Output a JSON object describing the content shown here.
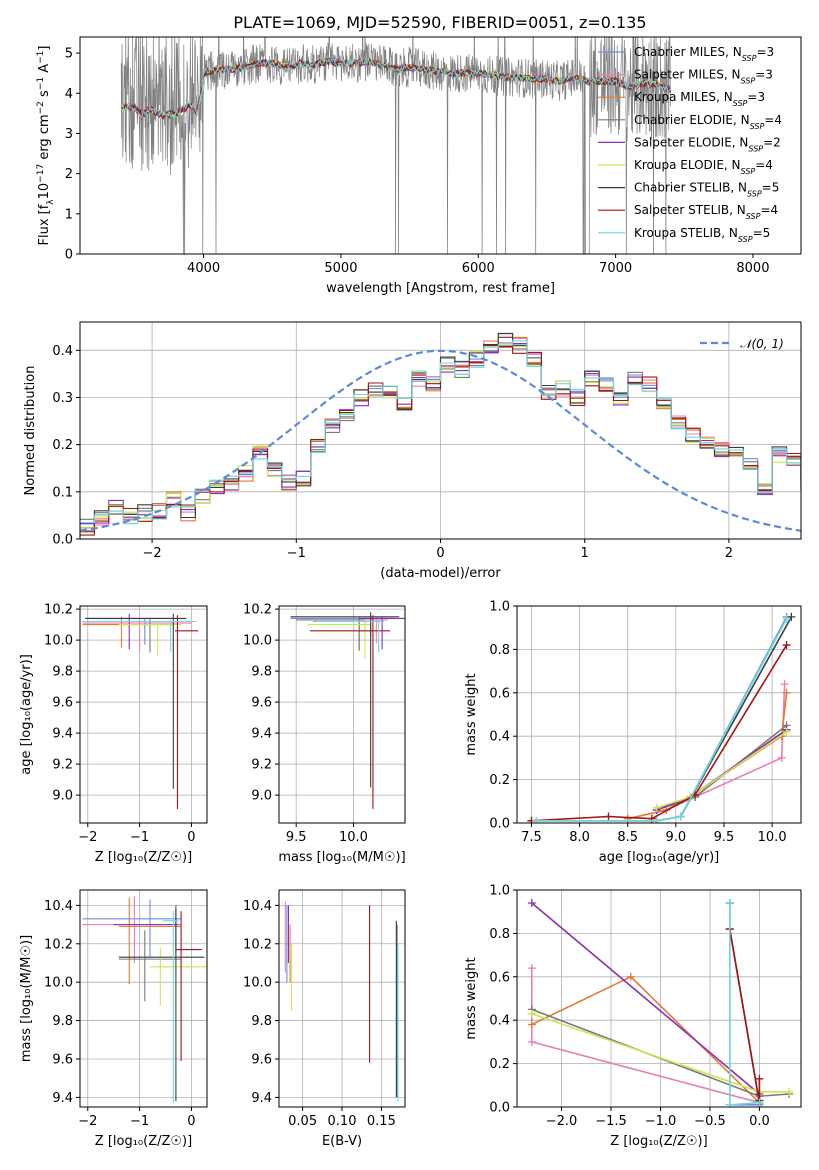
{
  "figure": {
    "title": "PLATE=1069, MJD=52590, FIBERID=0051, z=0.135"
  },
  "models": [
    {
      "name": "Chabrier MILES",
      "nssp": "3",
      "color": "#6f8fdc"
    },
    {
      "name": "Salpeter MILES",
      "nssp": "3",
      "color": "#e77fb5"
    },
    {
      "name": "Kroupa MILES",
      "nssp": "3",
      "color": "#e67a35"
    },
    {
      "name": "Chabrier ELODIE",
      "nssp": "4",
      "color": "#7a7a7a"
    },
    {
      "name": "Salpeter ELODIE",
      "nssp": "2",
      "color": "#8b2fb3"
    },
    {
      "name": "Kroupa ELODIE",
      "nssp": "4",
      "color": "#c9e84f"
    },
    {
      "name": "Chabrier STELIB",
      "nssp": "5",
      "color": "#3c3c3c"
    },
    {
      "name": "Salpeter STELIB",
      "nssp": "4",
      "color": "#a31515"
    },
    {
      "name": "Kroupa STELIB",
      "nssp": "5",
      "color": "#6fd8dc"
    }
  ],
  "chart_data": [
    {
      "id": "spectrum",
      "type": "line",
      "xlabel": "wavelength [Angstrom, rest frame]",
      "ylabel_parts": [
        "Flux [f",
        "λ",
        "10",
        "−17",
        " erg cm",
        "−2",
        " s",
        "−1",
        " A",
        "−1",
        "]"
      ],
      "xlim": [
        3100,
        8350
      ],
      "ylim": [
        0,
        5.4
      ],
      "xticks": [
        4000,
        5000,
        6000,
        7000,
        8000
      ],
      "yticks": [
        0,
        1,
        2,
        3,
        4,
        5
      ],
      "grid": false,
      "legend_position": "right",
      "model_curve": {
        "x": [
          3400,
          3500,
          3550,
          3600,
          3700,
          3800,
          3900,
          3950,
          4000,
          4100,
          4200,
          4300,
          4400,
          4500,
          4600,
          4700,
          4800,
          4900,
          5000,
          5100,
          5200,
          5300,
          5400,
          5500,
          5600,
          5700,
          5800,
          5900,
          6000,
          6100,
          6200,
          6300,
          6400,
          6500,
          6600,
          6700,
          6800,
          6900,
          7000,
          7100,
          7200,
          7300,
          7400
        ],
        "y": [
          3.9,
          3.9,
          3.7,
          3.85,
          3.7,
          3.75,
          3.95,
          3.8,
          4.5,
          4.6,
          4.6,
          4.65,
          4.75,
          4.75,
          4.65,
          4.75,
          4.7,
          4.8,
          4.75,
          4.75,
          4.8,
          4.7,
          4.6,
          4.65,
          4.6,
          4.55,
          4.5,
          4.5,
          4.5,
          4.45,
          4.4,
          4.4,
          4.35,
          4.35,
          4.3,
          4.4,
          4.3,
          4.3,
          4.3,
          4.15,
          4.25,
          4.2,
          4.1
        ]
      }
    },
    {
      "id": "residuals",
      "type": "step",
      "xlabel": "(data-model)/error",
      "ylabel": "Normed distribution",
      "xlim": [
        -2.5,
        2.5
      ],
      "ylim": [
        0,
        0.46
      ],
      "xticks": [
        -2,
        -1,
        0,
        1,
        2
      ],
      "yticks": [
        0.0,
        0.1,
        0.2,
        0.3,
        0.4
      ],
      "grid": true,
      "legend": "𝒩(0, 1)",
      "legend_position": "top-right",
      "bin_edges_start": -2.5,
      "bin_width": 0.1,
      "histogram": [
        0.025,
        0.045,
        0.07,
        0.05,
        0.055,
        0.06,
        0.085,
        0.055,
        0.09,
        0.11,
        0.12,
        0.14,
        0.18,
        0.15,
        0.12,
        0.13,
        0.2,
        0.24,
        0.26,
        0.3,
        0.32,
        0.31,
        0.29,
        0.34,
        0.33,
        0.37,
        0.36,
        0.38,
        0.41,
        0.42,
        0.41,
        0.38,
        0.31,
        0.32,
        0.3,
        0.34,
        0.33,
        0.3,
        0.34,
        0.33,
        0.29,
        0.25,
        0.22,
        0.2,
        0.19,
        0.18,
        0.16,
        0.11,
        0.18,
        0.17,
        0.12,
        0.1,
        0.08,
        0.065,
        0.07,
        0.05,
        0.045,
        0.04,
        0.035,
        0.035,
        0.03
      ]
    },
    {
      "id": "age-vs-Z",
      "type": "errorbar",
      "xlabel": "Z [log₁₀(Z/Z☉)]",
      "ylabel": "age  [log₁₀(age/yr)]",
      "xlim": [
        -2.15,
        0.3
      ],
      "ylim": [
        8.82,
        10.22
      ],
      "xticks": [
        -2,
        -1,
        0
      ],
      "yticks": [
        9.0,
        9.2,
        9.4,
        9.6,
        9.8,
        10.0,
        10.2
      ],
      "grid": true,
      "points": [
        {
          "x": -0.9,
          "y": 10.12,
          "xerr": [
            1.2,
            0.9
          ],
          "yerr": [
            0.15,
            0.02
          ]
        },
        {
          "x": -1.0,
          "y": 10.11,
          "xerr": [
            1.1,
            1.0
          ],
          "yerr": [
            0.18,
            0.02
          ]
        },
        {
          "x": -1.35,
          "y": 10.1,
          "xerr": [
            0.75,
            1.0
          ],
          "yerr": [
            0.15,
            0.05
          ]
        },
        {
          "x": -0.8,
          "y": 10.12,
          "xerr": [
            1.1,
            0.6
          ],
          "yerr": [
            0.2,
            0.02
          ]
        },
        {
          "x": -1.2,
          "y": 10.14,
          "xerr": [
            0.85,
            0.95
          ],
          "yerr": [
            0.2,
            0.03
          ]
        },
        {
          "x": -0.65,
          "y": 10.1,
          "xerr": [
            0.75,
            0.45
          ],
          "yerr": [
            0.2,
            0.02
          ]
        },
        {
          "x": -0.35,
          "y": 10.14,
          "xerr": [
            1.7,
            0.25
          ],
          "yerr": [
            1.1,
            0.03
          ]
        },
        {
          "x": -0.27,
          "y": 10.06,
          "xerr": [
            0.05,
            0.4
          ],
          "yerr": [
            1.15,
            0.1
          ]
        },
        {
          "x": -0.4,
          "y": 10.12,
          "xerr": [
            1.7,
            0.5
          ],
          "yerr": [
            0.2,
            0.01
          ]
        }
      ]
    },
    {
      "id": "age-vs-mass",
      "type": "errorbar",
      "xlabel": "mass [log₁₀(M/M☉)]",
      "ylabel": "",
      "xlim": [
        9.35,
        10.45
      ],
      "ylim": [
        8.82,
        10.22
      ],
      "xticks": [
        9.5,
        10.0
      ],
      "yticks": [
        9.0,
        9.2,
        9.4,
        9.6,
        9.8,
        10.0,
        10.2
      ],
      "grid": true,
      "points": [
        {
          "x": 10.15,
          "y": 10.14,
          "xerr": [
            0.7,
            0.2
          ],
          "yerr": [
            0.12,
            0.02
          ]
        },
        {
          "x": 10.2,
          "y": 10.13,
          "xerr": [
            0.6,
            0.1
          ],
          "yerr": [
            0.15,
            0.02
          ]
        },
        {
          "x": 10.05,
          "y": 10.12,
          "xerr": [
            0.4,
            0.15
          ],
          "yerr": [
            0.18,
            0.02
          ]
        },
        {
          "x": 10.05,
          "y": 10.13,
          "xerr": [
            0.55,
            0.05
          ],
          "yerr": [
            0.2,
            0.02
          ]
        },
        {
          "x": 10.25,
          "y": 10.14,
          "xerr": [
            0.2,
            0.2
          ],
          "yerr": [
            0.2,
            0.01
          ]
        },
        {
          "x": 10.1,
          "y": 10.1,
          "xerr": [
            0.5,
            0.05
          ],
          "yerr": [
            0.22,
            0.02
          ]
        },
        {
          "x": 10.15,
          "y": 10.15,
          "xerr": [
            0.7,
            0.25
          ],
          "yerr": [
            1.1,
            0.03
          ]
        },
        {
          "x": 10.17,
          "y": 10.06,
          "xerr": [
            0.55,
            0.15
          ],
          "yerr": [
            1.15,
            0.1
          ]
        },
        {
          "x": 10.22,
          "y": 10.12,
          "xerr": [
            0.55,
            0.05
          ],
          "yerr": [
            0.2,
            0.01
          ]
        }
      ]
    },
    {
      "id": "weight-vs-age",
      "type": "line",
      "xlabel": "age  [log₁₀(age/yr)]",
      "ylabel": "mass weight",
      "xlim": [
        7.35,
        10.3
      ],
      "ylim": [
        0,
        1.0
      ],
      "xticks": [
        7.5,
        8.0,
        8.5,
        9.0,
        9.5,
        10.0
      ],
      "yticks": [
        0.0,
        0.2,
        0.4,
        0.6,
        0.8,
        1.0
      ],
      "grid": true,
      "series": [
        {
          "x": [
            8.5,
            8.8,
            9.05,
            10.15
          ],
          "y": [
            0.01,
            0.01,
            0.03,
            0.95
          ]
        },
        {
          "x": [
            8.5,
            8.9,
            9.2,
            10.1,
            10.13
          ],
          "y": [
            0.02,
            0.06,
            0.12,
            0.3,
            0.64
          ]
        },
        {
          "x": [
            8.5,
            8.9,
            9.15,
            10.1,
            10.15
          ],
          "y": [
            0.02,
            0.06,
            0.12,
            0.4,
            0.6
          ]
        },
        {
          "x": [
            8.8,
            9.2,
            10.15
          ],
          "y": [
            0.06,
            0.12,
            0.45
          ]
        },
        {
          "x": [
            8.8,
            9.15,
            10.15
          ],
          "y": [
            0.06,
            0.12,
            0.43
          ]
        },
        {
          "x": [
            8.8,
            9.15,
            10.15
          ],
          "y": [
            0.07,
            0.12,
            0.42
          ]
        },
        {
          "x": [
            7.5,
            8.8,
            9.05,
            10.2
          ],
          "y": [
            0.01,
            0.01,
            0.03,
            0.95
          ]
        },
        {
          "x": [
            7.5,
            8.3,
            8.75,
            9.2,
            10.15
          ],
          "y": [
            0.01,
            0.03,
            0.02,
            0.13,
            0.82
          ]
        },
        {
          "x": [
            7.55,
            8.8,
            9.05,
            10.15
          ],
          "y": [
            0.01,
            0.01,
            0.03,
            0.94
          ]
        }
      ]
    },
    {
      "id": "mass-vs-Z",
      "type": "errorbar",
      "xlabel": "Z [log₁₀(Z/Z☉)]",
      "ylabel": "mass [log₁₀(M/M☉)]",
      "xlim": [
        -2.15,
        0.3
      ],
      "ylim": [
        9.35,
        10.48
      ],
      "xticks": [
        -2,
        -1,
        0
      ],
      "yticks": [
        9.4,
        9.6,
        9.8,
        10.0,
        10.2,
        10.4
      ],
      "grid": true,
      "points": [
        {
          "x": -0.8,
          "y": 10.33,
          "xerr": [
            1.3,
            0.6
          ],
          "yerr": [
            0.2,
            0.1
          ]
        },
        {
          "x": -1.1,
          "y": 10.3,
          "xerr": [
            1.0,
            0.9
          ],
          "yerr": [
            0.2,
            0.15
          ]
        },
        {
          "x": -1.2,
          "y": 10.29,
          "xerr": [
            0.2,
            1.0
          ],
          "yerr": [
            0.3,
            0.15
          ]
        },
        {
          "x": -0.9,
          "y": 10.12,
          "xerr": [
            0.5,
            0.7
          ],
          "yerr": [
            0.22,
            0.15
          ]
        },
        {
          "x": -0.3,
          "y": 10.3,
          "xerr": [
            1.2,
            0.05
          ],
          "yerr": [
            0.15,
            0.1
          ]
        },
        {
          "x": -0.6,
          "y": 10.08,
          "xerr": [
            0.2,
            0.9
          ],
          "yerr": [
            0.2,
            0.1
          ]
        },
        {
          "x": -0.3,
          "y": 10.13,
          "xerr": [
            1.1,
            0.55
          ],
          "yerr": [
            0.75,
            0.25
          ]
        },
        {
          "x": -0.2,
          "y": 10.17,
          "xerr": [
            0.1,
            0.4
          ],
          "yerr": [
            0.58,
            0.2
          ]
        },
        {
          "x": -0.35,
          "y": 10.32,
          "xerr": [
            0.2,
            0.1
          ],
          "yerr": [
            0.95,
            0.05
          ]
        }
      ]
    },
    {
      "id": "mass-vs-ebv",
      "type": "errorbar",
      "xlabel": "E(B-V)",
      "ylabel": "",
      "xlim": [
        0.02,
        0.18
      ],
      "ylim": [
        9.35,
        10.48
      ],
      "xticks": [
        0.05,
        0.1,
        0.15
      ],
      "yticks": [
        9.4,
        9.6,
        9.8,
        10.0,
        10.2,
        10.4
      ],
      "grid": true,
      "points": [
        {
          "x": 0.03,
          "y": 10.3,
          "xerr": [
            0,
            0
          ],
          "yerr": [
            0.3,
            0.1
          ]
        },
        {
          "x": 0.028,
          "y": 10.3,
          "xerr": [
            0,
            0
          ],
          "yerr": [
            0.25,
            0.12
          ]
        },
        {
          "x": 0.034,
          "y": 10.2,
          "xerr": [
            0,
            0
          ],
          "yerr": [
            0.2,
            0.1
          ]
        },
        {
          "x": 0.17,
          "y": 10.2,
          "xerr": [
            0,
            0
          ],
          "yerr": [
            0.8,
            0.1
          ]
        },
        {
          "x": 0.032,
          "y": 10.3,
          "xerr": [
            0,
            0
          ],
          "yerr": [
            0.2,
            0.1
          ]
        },
        {
          "x": 0.036,
          "y": 10.1,
          "xerr": [
            0,
            0
          ],
          "yerr": [
            0.25,
            0.1
          ]
        },
        {
          "x": 0.169,
          "y": 10.2,
          "xerr": [
            0,
            0
          ],
          "yerr": [
            0.8,
            0.12
          ]
        },
        {
          "x": 0.135,
          "y": 10.0,
          "xerr": [
            0,
            0
          ],
          "yerr": [
            0.42,
            0.4
          ]
        },
        {
          "x": 0.171,
          "y": 10.1,
          "xerr": [
            0,
            0
          ],
          "yerr": [
            0.72,
            0.1
          ]
        }
      ]
    },
    {
      "id": "weight-vs-Z",
      "type": "line",
      "xlabel": "Z [log₁₀(Z/Z☉)]",
      "ylabel": "mass weight",
      "xlim": [
        -2.45,
        0.42
      ],
      "ylim": [
        0,
        1.0
      ],
      "xticks": [
        -2.0,
        -1.5,
        -1.0,
        -0.5,
        0.0
      ],
      "yticks": [
        0.0,
        0.2,
        0.4,
        0.6,
        0.8,
        1.0
      ],
      "grid": true,
      "series": [
        {
          "x": [
            -0.3,
            -0.3,
            0.0
          ],
          "y": [
            0.94,
            0.01,
            0.01
          ]
        },
        {
          "x": [
            -2.3,
            -2.3,
            0.0
          ],
          "y": [
            0.64,
            0.3,
            0.02
          ]
        },
        {
          "x": [
            -2.3,
            -1.3,
            0.0
          ],
          "y": [
            0.38,
            0.6,
            0.02
          ]
        },
        {
          "x": [
            -2.3,
            0.0,
            0.3
          ],
          "y": [
            0.45,
            0.05,
            0.06
          ]
        },
        {
          "x": [
            -2.3,
            0.0
          ],
          "y": [
            0.94,
            0.06
          ]
        },
        {
          "x": [
            -2.3,
            0.0,
            0.3
          ],
          "y": [
            0.43,
            0.07,
            0.07
          ]
        },
        {
          "x": [
            -0.3,
            -0.3,
            0.0,
            0.0
          ],
          "y": [
            0.94,
            0.82,
            0.02,
            0.03
          ]
        },
        {
          "x": [
            -0.3,
            0.0,
            0.0
          ],
          "y": [
            0.82,
            0.02,
            0.13
          ]
        },
        {
          "x": [
            -0.3,
            -0.3,
            0.0
          ],
          "y": [
            0.94,
            0.01,
            0.02
          ]
        }
      ]
    }
  ]
}
